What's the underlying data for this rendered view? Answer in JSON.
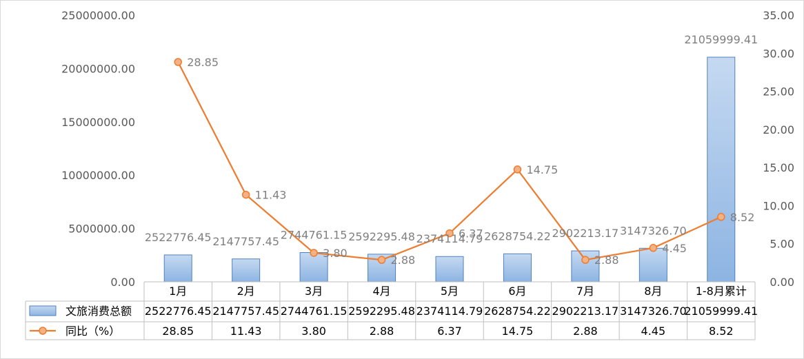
{
  "chart_data": {
    "type": "bar",
    "categories": [
      "1月",
      "2月",
      "3月",
      "4月",
      "5月",
      "6月",
      "7月",
      "8月",
      "1-8月累计"
    ],
    "series": [
      {
        "name": "文旅消费总额",
        "type": "bar",
        "axis": "left",
        "values": [
          2522776.45,
          2147757.45,
          2744761.15,
          2592295.48,
          2374114.79,
          2628754.22,
          2902213.17,
          3147326.7,
          21059999.41
        ],
        "labels": [
          "2522776.45",
          "2147757.45",
          "2744761.15",
          "2592295.48",
          "2374114.79",
          "2628754.22",
          "2902213.17",
          "3147326.70",
          "21059999.41"
        ]
      },
      {
        "name": "同比（%）",
        "type": "line",
        "axis": "right",
        "values": [
          28.85,
          11.43,
          3.8,
          2.88,
          6.37,
          14.75,
          2.88,
          4.45,
          8.52
        ],
        "labels": [
          "28.85",
          "11.43",
          "3.80",
          "2.88",
          "6.37",
          "14.75",
          "2.88",
          "4.45",
          "8.52"
        ]
      }
    ],
    "y_left": {
      "ylim": [
        0,
        25000000
      ],
      "ticks": [
        0,
        5000000,
        10000000,
        15000000,
        20000000,
        25000000
      ],
      "tick_labels": [
        "0.00",
        "5000000.00",
        "10000000.00",
        "15000000.00",
        "20000000.00",
        "25000000.00"
      ]
    },
    "y_right": {
      "ylim": [
        0,
        35
      ],
      "ticks": [
        0,
        5,
        10,
        15,
        20,
        25,
        30,
        35
      ],
      "tick_labels": [
        "0.00",
        "5.00",
        "10.00",
        "15.00",
        "20.00",
        "25.00",
        "30.00",
        "35.00"
      ]
    },
    "data_table": true,
    "grid": false,
    "colors": {
      "bar_top": "#c5d9f1",
      "bar_bottom": "#8db4e2",
      "bar_border": "#4f81bd",
      "line": "#ed7d31",
      "marker_fill": "#f4b183"
    }
  }
}
